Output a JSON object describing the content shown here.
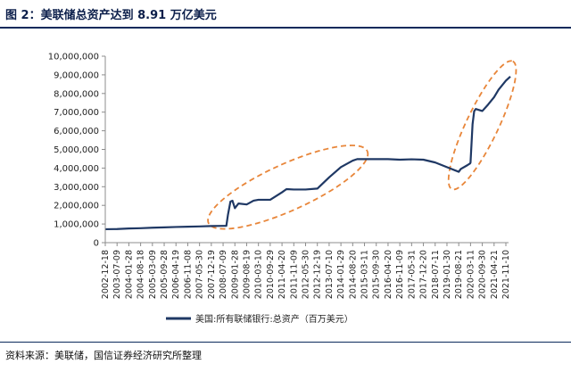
{
  "figure": {
    "title": "图 2：美联储总资产达到 8.91 万亿美元",
    "source": "资料来源：美联储，国信证券经济研究所整理"
  },
  "colors": {
    "line": "#1f3864",
    "annotation": "#e8863a",
    "axis": "#8c8c8c",
    "title": "#0b1e4a"
  },
  "chart_data": {
    "type": "line",
    "title": "",
    "xlabel": "",
    "ylabel": "",
    "ylim": [
      0,
      10000000
    ],
    "yticks": [
      0,
      1000000,
      2000000,
      3000000,
      4000000,
      5000000,
      6000000,
      7000000,
      8000000,
      9000000,
      10000000
    ],
    "ytick_labels": [
      "0",
      "1,000,000",
      "2,000,000",
      "3,000,000",
      "4,000,000",
      "5,000,000",
      "6,000,000",
      "7,000,000",
      "8,000,000",
      "9,000,000",
      "10,000,000"
    ],
    "xtick_labels": [
      "2002-12-18",
      "2003-07-09",
      "2004-01-28",
      "2004-08-18",
      "2005-03-09",
      "2005-09-28",
      "2006-04-19",
      "2006-11-08",
      "2007-05-30",
      "2007-12-19",
      "2008-07-09",
      "2009-01-28",
      "2009-08-19",
      "2010-03-10",
      "2010-09-29",
      "2011-04-20",
      "2011-11-09",
      "2012-05-30",
      "2012-12-19",
      "2013-07-10",
      "2014-01-29",
      "2014-08-20",
      "2015-03-11",
      "2015-09-30",
      "2016-04-20",
      "2016-11-09",
      "2017-05-31",
      "2017-12-20",
      "2018-07-11",
      "2019-01-30",
      "2019-08-21",
      "2020-03-11",
      "2020-09-30",
      "2021-04-21",
      "2021-11-10"
    ],
    "legend": {
      "position": "bottom",
      "entries": [
        "美国:所有联储银行:总资产（百万美元）"
      ]
    },
    "annotations": [
      {
        "type": "ellipse",
        "style": "dashed",
        "from": "2008-07-09",
        "to": "2014-08-20"
      },
      {
        "type": "ellipse",
        "style": "dashed",
        "from": "2019-08-21",
        "to": "2021-11-10"
      }
    ],
    "series": [
      {
        "name": "美国:所有联储银行:总资产（百万美元）",
        "points": [
          [
            "2002-12-18",
            720000
          ],
          [
            "2003-07-09",
            730000
          ],
          [
            "2004-01-28",
            760000
          ],
          [
            "2004-08-18",
            775000
          ],
          [
            "2005-03-09",
            800000
          ],
          [
            "2005-09-28",
            820000
          ],
          [
            "2006-04-19",
            840000
          ],
          [
            "2006-11-08",
            855000
          ],
          [
            "2007-05-30",
            870000
          ],
          [
            "2007-12-19",
            890000
          ],
          [
            "2008-07-09",
            900000
          ],
          [
            "2008-09-03",
            905000
          ],
          [
            "2008-10-01",
            1500000
          ],
          [
            "2008-11-12",
            2200000
          ],
          [
            "2008-12-17",
            2250000
          ],
          [
            "2009-01-28",
            1850000
          ],
          [
            "2009-04-01",
            2100000
          ],
          [
            "2009-08-19",
            2050000
          ],
          [
            "2009-12-16",
            2250000
          ],
          [
            "2010-03-10",
            2300000
          ],
          [
            "2010-09-29",
            2300000
          ],
          [
            "2011-04-20",
            2700000
          ],
          [
            "2011-07-06",
            2870000
          ],
          [
            "2011-11-09",
            2850000
          ],
          [
            "2012-05-30",
            2850000
          ],
          [
            "2012-12-19",
            2900000
          ],
          [
            "2013-07-10",
            3500000
          ],
          [
            "2014-01-29",
            4050000
          ],
          [
            "2014-08-20",
            4400000
          ],
          [
            "2014-11-05",
            4480000
          ],
          [
            "2015-03-11",
            4480000
          ],
          [
            "2015-09-30",
            4480000
          ],
          [
            "2016-04-20",
            4480000
          ],
          [
            "2016-11-09",
            4450000
          ],
          [
            "2017-05-31",
            4470000
          ],
          [
            "2017-12-20",
            4450000
          ],
          [
            "2018-07-11",
            4300000
          ],
          [
            "2019-01-30",
            4050000
          ],
          [
            "2019-08-21",
            3800000
          ],
          [
            "2019-09-25",
            3950000
          ],
          [
            "2020-01-15",
            4150000
          ],
          [
            "2020-03-04",
            4250000
          ],
          [
            "2020-03-11",
            4300000
          ],
          [
            "2020-04-15",
            6350000
          ],
          [
            "2020-05-13",
            7050000
          ],
          [
            "2020-06-10",
            7170000
          ],
          [
            "2020-09-30",
            7060000
          ],
          [
            "2021-01-06",
            7400000
          ],
          [
            "2021-04-21",
            7800000
          ],
          [
            "2021-07-07",
            8200000
          ],
          [
            "2021-11-10",
            8690000
          ],
          [
            "2022-01-26",
            8910000
          ]
        ]
      }
    ]
  }
}
